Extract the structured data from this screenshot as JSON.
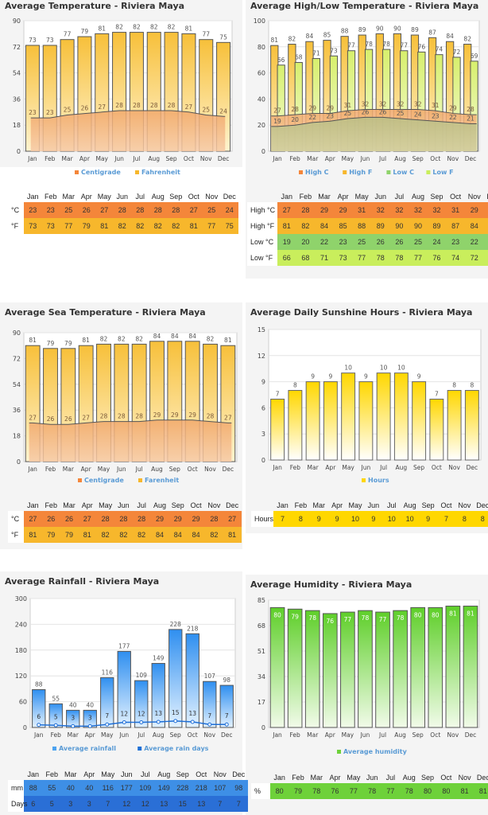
{
  "months": [
    "Jan",
    "Feb",
    "Mar",
    "Apr",
    "May",
    "Jun",
    "Jul",
    "Aug",
    "Sep",
    "Oct",
    "Nov",
    "Dec"
  ],
  "colors": {
    "orange": "#f4863a",
    "amber": "#f7b72c",
    "green": "#8fd36b",
    "lime": "#c9ee5c",
    "yellow": "#ffd700",
    "blue_table": "#3e8fe6",
    "blue_days": "#2a6fd6",
    "humidity_green": "#6ed13a",
    "legend_text": "#5a9bd5"
  },
  "chart_data": [
    {
      "id": "avg_temp",
      "type": "bar",
      "title": "Average Temperature - Riviera Maya",
      "categories": [
        "Jan",
        "Feb",
        "Mar",
        "Apr",
        "May",
        "Jun",
        "Jul",
        "Aug",
        "Sep",
        "Oct",
        "Nov",
        "Dec"
      ],
      "series": [
        {
          "name": "Fahrenheit",
          "type": "bar",
          "values": [
            73,
            73,
            77,
            79,
            81,
            82,
            82,
            82,
            82,
            81,
            77,
            75
          ]
        },
        {
          "name": "Centigrade",
          "type": "area",
          "values": [
            23,
            23,
            25,
            26,
            27,
            28,
            28,
            28,
            28,
            27,
            25,
            24
          ]
        }
      ],
      "ylim": [
        0,
        90
      ],
      "yticks": [
        0,
        18,
        36,
        54,
        72,
        90
      ],
      "legend": [
        {
          "label": "Centigrade",
          "color": "#f4863a"
        },
        {
          "label": "Fahrenheit",
          "color": "#f7b72c"
        }
      ],
      "legend_position": "bottom",
      "table": {
        "rows": [
          {
            "label": "°C",
            "values": [
              "23",
              "23",
              "25",
              "26",
              "27",
              "28",
              "28",
              "28",
              "28",
              "27",
              "25",
              "24"
            ],
            "color": "#f4863a"
          },
          {
            "label": "°F",
            "values": [
              "73",
              "73",
              "77",
              "79",
              "81",
              "82",
              "82",
              "82",
              "82",
              "81",
              "77",
              "75"
            ],
            "color": "#f7b72c"
          }
        ]
      }
    },
    {
      "id": "high_low",
      "type": "bar",
      "title": "Average High/Low Temperature - Riviera Maya",
      "categories": [
        "Jan",
        "Feb",
        "Mar",
        "Apr",
        "May",
        "Jun",
        "Jul",
        "Aug",
        "Sep",
        "Oct",
        "Nov",
        "Dec"
      ],
      "series": [
        {
          "name": "High F",
          "type": "bar",
          "values": [
            81,
            82,
            84,
            85,
            88,
            89,
            90,
            90,
            89,
            87,
            84,
            82
          ]
        },
        {
          "name": "Low F",
          "type": "bar",
          "values": [
            66,
            68,
            71,
            73,
            77,
            78,
            78,
            77,
            76,
            74,
            72,
            69
          ]
        },
        {
          "name": "High C",
          "type": "area",
          "values": [
            27,
            28,
            29,
            29,
            31,
            32,
            32,
            32,
            32,
            31,
            29,
            28
          ]
        },
        {
          "name": "Low C",
          "type": "area",
          "values": [
            19,
            20,
            22,
            23,
            25,
            26,
            26,
            25,
            24,
            23,
            22,
            21
          ]
        }
      ],
      "ylim": [
        0,
        100
      ],
      "yticks": [
        0,
        20,
        40,
        60,
        80,
        100
      ],
      "legend": [
        {
          "label": "High C",
          "color": "#f4863a"
        },
        {
          "label": "High F",
          "color": "#f7b72c"
        },
        {
          "label": "Low C",
          "color": "#8fd36b"
        },
        {
          "label": "Low F",
          "color": "#c9ee5c"
        }
      ],
      "legend_position": "bottom",
      "table": {
        "rows": [
          {
            "label": "High °C",
            "values": [
              "27",
              "28",
              "29",
              "29",
              "31",
              "32",
              "32",
              "32",
              "32",
              "31",
              "29",
              "28"
            ],
            "color": "#f4863a"
          },
          {
            "label": "High °F",
            "values": [
              "81",
              "82",
              "84",
              "85",
              "88",
              "89",
              "90",
              "90",
              "89",
              "87",
              "84",
              "82"
            ],
            "color": "#f7b72c"
          },
          {
            "label": "Low °C",
            "values": [
              "19",
              "20",
              "22",
              "23",
              "25",
              "26",
              "26",
              "25",
              "24",
              "23",
              "22",
              "21"
            ],
            "color": "#8fd36b"
          },
          {
            "label": "Low °F",
            "values": [
              "66",
              "68",
              "71",
              "73",
              "77",
              "78",
              "78",
              "77",
              "76",
              "74",
              "72",
              "69"
            ],
            "color": "#c9ee5c"
          }
        ]
      }
    },
    {
      "id": "sea_temp",
      "type": "bar",
      "title": "Average Sea Temperature - Riviera Maya",
      "categories": [
        "Jan",
        "Feb",
        "Mar",
        "Apr",
        "May",
        "Jun",
        "Jul",
        "Aug",
        "Sep",
        "Oct",
        "Nov",
        "Dec"
      ],
      "series": [
        {
          "name": "Farenheit",
          "type": "bar",
          "values": [
            81,
            79,
            79,
            81,
            82,
            82,
            82,
            84,
            84,
            84,
            82,
            81
          ]
        },
        {
          "name": "Centigrade",
          "type": "area",
          "values": [
            27,
            26,
            26,
            27,
            28,
            28,
            28,
            29,
            29,
            29,
            28,
            27
          ]
        }
      ],
      "ylim": [
        0,
        90
      ],
      "yticks": [
        0,
        18,
        36,
        54,
        72,
        90
      ],
      "legend": [
        {
          "label": "Centigrade",
          "color": "#f4863a"
        },
        {
          "label": "Farenheit",
          "color": "#f7b72c"
        }
      ],
      "legend_position": "bottom",
      "table": {
        "rows": [
          {
            "label": "°C",
            "values": [
              "27",
              "26",
              "26",
              "27",
              "28",
              "28",
              "28",
              "29",
              "29",
              "29",
              "28",
              "27"
            ],
            "color": "#f4863a"
          },
          {
            "label": "°F",
            "values": [
              "81",
              "79",
              "79",
              "81",
              "82",
              "82",
              "82",
              "84",
              "84",
              "84",
              "82",
              "81"
            ],
            "color": "#f7b72c"
          }
        ]
      }
    },
    {
      "id": "sunshine",
      "type": "bar",
      "title": "Average Daily Sunshine Hours - Riviera Maya",
      "categories": [
        "Jan",
        "Feb",
        "Mar",
        "Apr",
        "May",
        "Jun",
        "Jul",
        "Aug",
        "Sep",
        "Oct",
        "Nov",
        "Dec"
      ],
      "series": [
        {
          "name": "Hours",
          "type": "bar",
          "values": [
            7,
            8,
            9,
            9,
            10,
            9,
            10,
            10,
            9,
            7,
            8,
            8
          ]
        }
      ],
      "ylim": [
        0,
        15
      ],
      "yticks": [
        0,
        3,
        6,
        9,
        12,
        15
      ],
      "legend": [
        {
          "label": "Hours",
          "color": "#ffd700"
        }
      ],
      "legend_position": "bottom",
      "table": {
        "rows": [
          {
            "label": "Hours",
            "values": [
              "7",
              "8",
              "9",
              "9",
              "10",
              "9",
              "10",
              "10",
              "9",
              "7",
              "8",
              "8"
            ],
            "color": "#ffd700"
          }
        ]
      }
    },
    {
      "id": "rainfall",
      "type": "bar",
      "title": "Average Rainfall - Riviera Maya",
      "categories": [
        "Jan",
        "Feb",
        "Mar",
        "Apr",
        "May",
        "Jun",
        "Jul",
        "Aug",
        "Sep",
        "Oct",
        "Nov",
        "Dec"
      ],
      "series": [
        {
          "name": "Average rainfall",
          "type": "bar",
          "values": [
            88,
            55,
            40,
            40,
            116,
            177,
            109,
            149,
            228,
            218,
            107,
            98
          ]
        },
        {
          "name": "Average rain days",
          "type": "line",
          "values": [
            6,
            5,
            3,
            3,
            7,
            12,
            12,
            13,
            15,
            13,
            7,
            7
          ]
        }
      ],
      "ylim": [
        0,
        300
      ],
      "yticks": [
        0,
        60,
        120,
        180,
        240,
        300
      ],
      "legend": [
        {
          "label": "Average rainfall",
          "color": "#4da3f0"
        },
        {
          "label": "Average rain days",
          "color": "#1f6fd6"
        }
      ],
      "legend_position": "bottom",
      "table": {
        "rows": [
          {
            "label": "mm",
            "values": [
              "88",
              "55",
              "40",
              "40",
              "116",
              "177",
              "109",
              "149",
              "228",
              "218",
              "107",
              "98"
            ],
            "color": "#3e8fe6"
          },
          {
            "label": "Days",
            "values": [
              "6",
              "5",
              "3",
              "3",
              "7",
              "12",
              "12",
              "13",
              "15",
              "13",
              "7",
              "7"
            ],
            "color": "#2a6fd6"
          }
        ]
      }
    },
    {
      "id": "humidity",
      "type": "bar",
      "title": "Average Humidity - Riviera Maya",
      "categories": [
        "Jan",
        "Feb",
        "Mar",
        "Apr",
        "May",
        "Jun",
        "Jul",
        "Aug",
        "Sep",
        "Oct",
        "Nov",
        "Dec"
      ],
      "series": [
        {
          "name": "Average humidity",
          "type": "bar",
          "values": [
            80,
            79,
            78,
            76,
            77,
            78,
            77,
            78,
            80,
            80,
            81,
            81
          ]
        }
      ],
      "ylim": [
        0,
        85
      ],
      "yticks": [
        0,
        17,
        34,
        51,
        68,
        85
      ],
      "legend": [
        {
          "label": "Average humidity",
          "color": "#6ed13a"
        }
      ],
      "legend_position": "bottom",
      "table": {
        "rows": [
          {
            "label": "%",
            "values": [
              "80",
              "79",
              "78",
              "76",
              "77",
              "78",
              "77",
              "78",
              "80",
              "80",
              "81",
              "81"
            ],
            "color": "#6ed13a"
          }
        ]
      }
    }
  ]
}
